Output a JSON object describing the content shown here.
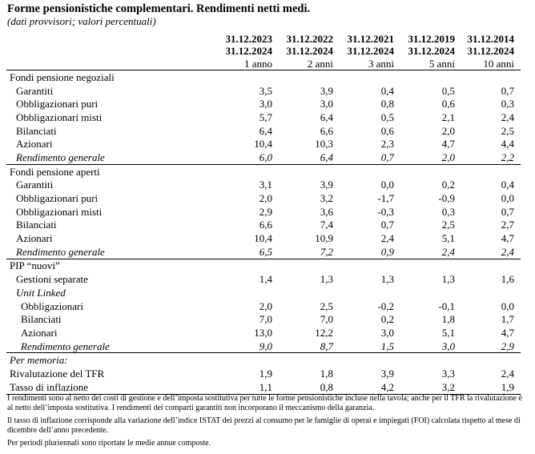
{
  "title": "Forme pensionistiche complementari. Rendimenti netti medi.",
  "subtitle": "(dati provvisori; valori percentuali)",
  "columns": [
    {
      "from": "31.12.2023",
      "to": "31.12.2024",
      "unit": "1 anno"
    },
    {
      "from": "31.12.2022",
      "to": "31.12.2024",
      "unit": "2 anni"
    },
    {
      "from": "31.12.2021",
      "to": "31.12.2024",
      "unit": "3 anni"
    },
    {
      "from": "31.12.2019",
      "to": "31.12.2024",
      "unit": "5 anni"
    },
    {
      "from": "31.12.2014",
      "to": "31.12.2024",
      "unit": "10 anni"
    }
  ],
  "sections": {
    "fpn": {
      "title": "Fondi pensione negoziali",
      "rows": [
        {
          "label": "Garantiti",
          "values": [
            "3,5",
            "3,9",
            "0,4",
            "0,5",
            "0,7"
          ]
        },
        {
          "label": "Obbligazionari puri",
          "values": [
            "3,0",
            "3,0",
            "0,8",
            "0,6",
            "0,3"
          ]
        },
        {
          "label": "Obbligazionari misti",
          "values": [
            "5,7",
            "6,4",
            "0,5",
            "2,1",
            "2,4"
          ]
        },
        {
          "label": "Bilanciati",
          "values": [
            "6,4",
            "6,6",
            "0,6",
            "2,0",
            "2,5"
          ]
        },
        {
          "label": "Azionari",
          "values": [
            "10,4",
            "10,3",
            "2,3",
            "4,7",
            "4,4"
          ]
        },
        {
          "label": "Rendimento generale",
          "values": [
            "6,0",
            "6,4",
            "0,7",
            "2,0",
            "2,2"
          ]
        }
      ]
    },
    "fpa": {
      "title": "Fondi pensione aperti",
      "rows": [
        {
          "label": "Garantiti",
          "values": [
            "3,1",
            "3,9",
            "0,0",
            "0,2",
            "0,4"
          ]
        },
        {
          "label": "Obbligazionari puri",
          "values": [
            "2,0",
            "3,2",
            "-1,7",
            "-0,9",
            "0,0"
          ]
        },
        {
          "label": "Obbligazionari misti",
          "values": [
            "2,9",
            "3,6",
            "-0,3",
            "0,3",
            "0,7"
          ]
        },
        {
          "label": "Bilanciati",
          "values": [
            "6,6",
            "7,4",
            "0,7",
            "2,5",
            "2,7"
          ]
        },
        {
          "label": "Azionari",
          "values": [
            "10,4",
            "10,9",
            "2,4",
            "5,1",
            "4,7"
          ]
        },
        {
          "label": "Rendimento generale",
          "values": [
            "6,5",
            "7,2",
            "0,9",
            "2,4",
            "2,4"
          ]
        }
      ]
    },
    "pip": {
      "title": "PIP “nuovi”",
      "gestioni": {
        "label": "Gestioni separate",
        "values": [
          "1,4",
          "1,3",
          "1,3",
          "1,3",
          "1,6"
        ]
      },
      "unit_linked": "Unit Linked",
      "rows": [
        {
          "label": "Obbligazionari",
          "values": [
            "2,0",
            "2,5",
            "-0,2",
            "-0,1",
            "0,0"
          ]
        },
        {
          "label": "Bilanciati",
          "values": [
            "7,0",
            "7,0",
            "0,2",
            "1,8",
            "1,7"
          ]
        },
        {
          "label": "Azionari",
          "values": [
            "13,0",
            "12,2",
            "3,0",
            "5,1",
            "4,7"
          ]
        },
        {
          "label": "Rendimento generale",
          "values": [
            "9,0",
            "8,7",
            "1,5",
            "3,0",
            "2,9"
          ]
        }
      ]
    },
    "memo": {
      "title": "Per memoria:",
      "rows": [
        {
          "label": "Rivalutazione del TFR",
          "values": [
            "1,9",
            "1,8",
            "3,9",
            "3,3",
            "2,4"
          ]
        },
        {
          "label": "Tasso di inflazione",
          "values": [
            "1,1",
            "0,8",
            "4,2",
            "3,2",
            "1,9"
          ]
        }
      ]
    }
  },
  "notes": [
    "I rendimenti sono al netto dei costi di gestione e dell’imposta sostitutiva per tutte le forme pensionistiche incluse nella tavola; anche per il TFR la rivalutazione è al netto dell’imposta sostitutiva. I rendimenti dei comparti garantiti non incorporano il meccanismo della garanzia.",
    "Il tasso di inflazione corrisponde alla variazione dell’indice ISTAT dei prezzi al consumo per le famiglie di operai e impiegati (FOI) calcolata rispetto al mese di dicembre dell’anno precedente.",
    "Per periodi pluriennali sono riportate le medie annue composte."
  ]
}
